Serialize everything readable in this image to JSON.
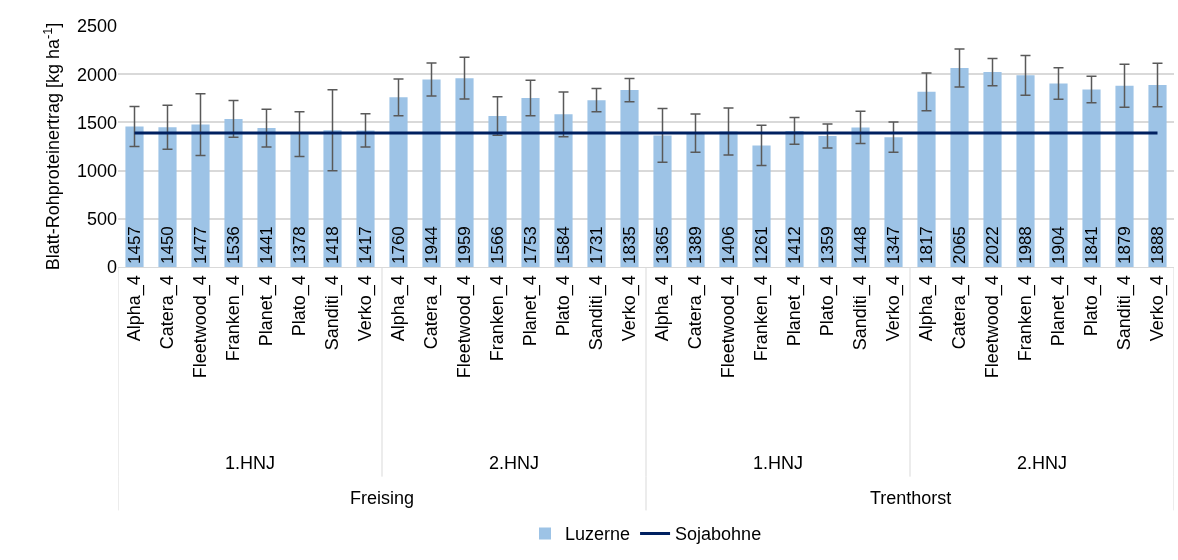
{
  "chart_data": {
    "type": "bar",
    "ylabel": "Blatt-Rohproteinertrag [kg ha$^{-1}$]",
    "categories": [
      "Alpha_4",
      "Catera_4",
      "Fleetwood_4",
      "Franken_4",
      "Planet_4",
      "Plato_4",
      "Sanditi_4",
      "Verko_4",
      "Alpha_4",
      "Catera_4",
      "Fleetwood_4",
      "Franken_4",
      "Planet_4",
      "Plato_4",
      "Sanditi_4",
      "Verko_4",
      "Alpha_4",
      "Catera_4",
      "Fleetwood_4",
      "Franken_4",
      "Planet_4",
      "Plato_4",
      "Sanditi_4",
      "Verko_4",
      "Alpha_4",
      "Catera_4",
      "Fleetwood_4",
      "Franken_4",
      "Planet_4",
      "Plato_4",
      "Sanditi_4",
      "Verko_4"
    ],
    "series": [
      {
        "name": "Luzerne",
        "color": "#9dc3e6",
        "values": [
          1457,
          1450,
          1477,
          1536,
          1441,
          1378,
          1418,
          1417,
          1760,
          1944,
          1959,
          1566,
          1753,
          1584,
          1731,
          1835,
          1365,
          1389,
          1406,
          1261,
          1412,
          1359,
          1448,
          1347,
          1817,
          2065,
          2022,
          1988,
          1904,
          1841,
          1879,
          1888
        ],
        "value_labels": [
          "1457",
          "1450",
          "1477",
          "1536",
          "1441",
          "1378",
          "1418",
          "1417",
          "1760",
          "1944",
          "1959",
          "1566",
          "1753",
          "1584",
          "1731",
          "1835",
          "1365",
          "1389",
          "1406",
          "1261",
          "1412",
          "1359",
          "1448",
          "1347",
          "1817",
          "2065",
          "2022",
          "1988",
          "1904",
          "1841",
          "1879",
          "1888"
        ],
        "errors": [
          207,
          228,
          321,
          190,
          195,
          233,
          420,
          173,
          190,
          171,
          216,
          200,
          185,
          232,
          121,
          121,
          278,
          199,
          244,
          209,
          138,
          124,
          168,
          156,
          195,
          197,
          142,
          207,
          163,
          137,
          223,
          225
        ]
      },
      {
        "name": "Sojabohne",
        "type": "line",
        "color": "#002060",
        "values": [
          1390,
          1390,
          1390,
          1390,
          1390,
          1390,
          1390,
          1390,
          1390,
          1390,
          1390,
          1390,
          1390,
          1390,
          1390,
          1390,
          1390,
          1390,
          1390,
          1390,
          1390,
          1390,
          1390,
          1390,
          1390,
          1390,
          1390,
          1390,
          1390,
          1390,
          1390,
          1390
        ]
      }
    ],
    "annotations": [
      "1.HNJ",
      "2.HNJ",
      "1.HNJ",
      "2.HNJ",
      "Freising",
      "Trenthorst"
    ],
    "ylim": [
      0,
      2500
    ],
    "yticks": [
      0,
      500,
      1000,
      1500,
      2000,
      2500
    ],
    "grid": "y",
    "legend": "bottom",
    "marker": "none",
    "line_style": "solid"
  }
}
